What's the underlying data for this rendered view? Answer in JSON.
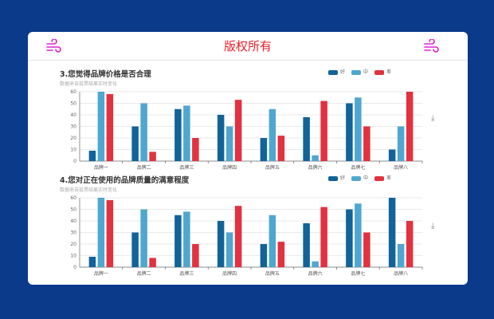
{
  "header": {
    "title": "版权所有",
    "left_icon": "wind-icon",
    "right_icon": "wind-icon"
  },
  "colors": {
    "good": "#12639a",
    "mid": "#4fa7d0",
    "bad": "#e2323f",
    "title": "#e8202a"
  },
  "legend": [
    "好",
    "中",
    "差"
  ],
  "chart_data": [
    {
      "type": "bar",
      "title": "3.您觉得品牌价格是否合理",
      "subtitle": "数据来自投票结果实时变化",
      "categories": [
        "品牌一",
        "品牌二",
        "品牌三",
        "品牌四",
        "品牌五",
        "品牌六",
        "品牌七",
        "品牌八"
      ],
      "series": [
        {
          "name": "好",
          "values": [
            9,
            30,
            45,
            40,
            20,
            38,
            50,
            10
          ]
        },
        {
          "name": "中",
          "values": [
            60,
            50,
            48,
            30,
            45,
            5,
            55,
            30
          ]
        },
        {
          "name": "差",
          "values": [
            58,
            8,
            20,
            53,
            22,
            52,
            30,
            60
          ]
        }
      ],
      "yticks": [
        0,
        10,
        20,
        30,
        40,
        50,
        60
      ],
      "ylim": [
        0,
        60
      ],
      "grid": true,
      "legend": "top-right"
    },
    {
      "type": "bar",
      "title": "4.您对正在使用的品牌质量的满意程度",
      "subtitle": "数据来自投票结果实时变化",
      "categories": [
        "品牌一",
        "品牌二",
        "品牌三",
        "品牌四",
        "品牌五",
        "品牌六",
        "品牌七",
        "品牌八"
      ],
      "series": [
        {
          "name": "好",
          "values": [
            9,
            30,
            45,
            40,
            20,
            38,
            50,
            60
          ]
        },
        {
          "name": "中",
          "values": [
            60,
            50,
            48,
            30,
            45,
            5,
            55,
            20
          ]
        },
        {
          "name": "差",
          "values": [
            58,
            8,
            20,
            53,
            22,
            52,
            30,
            40
          ]
        }
      ],
      "yticks": [
        0,
        10,
        20,
        30,
        40,
        50,
        60
      ],
      "ylim": [
        0,
        60
      ],
      "grid": true,
      "legend": "top-right"
    }
  ],
  "download_icon": "download-icon"
}
